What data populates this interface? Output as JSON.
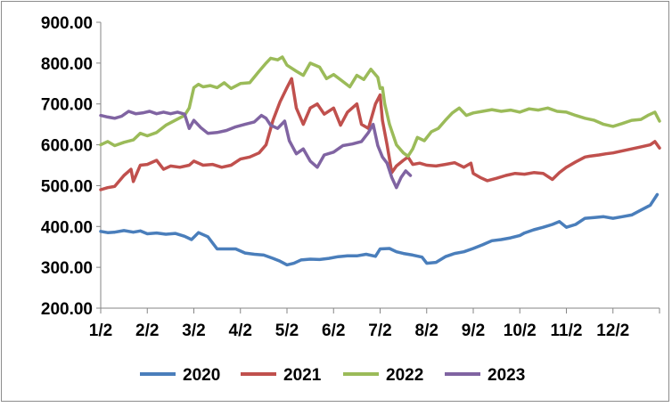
{
  "chart_data": {
    "type": "line",
    "title": "",
    "xlabel": "",
    "ylabel": "",
    "ylim": [
      200,
      900
    ],
    "y_ticks": [
      "200.00",
      "300.00",
      "400.00",
      "500.00",
      "600.00",
      "700.00",
      "800.00",
      "900.00"
    ],
    "x_ticks": [
      "1/2",
      "2/2",
      "3/2",
      "4/2",
      "5/2",
      "6/2",
      "7/2",
      "8/2",
      "9/2",
      "10/2",
      "11/2",
      "12/2"
    ],
    "grid": false,
    "legend_position": "bottom",
    "x_unit": "month (1 = Jan 2 ... 13 = year end)",
    "series": [
      {
        "name": "2020",
        "color": "#4a7ebb",
        "points": [
          [
            1.0,
            388
          ],
          [
            1.15,
            385
          ],
          [
            1.3,
            386
          ],
          [
            1.5,
            390
          ],
          [
            1.7,
            386
          ],
          [
            1.85,
            389
          ],
          [
            2.0,
            382
          ],
          [
            2.2,
            384
          ],
          [
            2.4,
            381
          ],
          [
            2.6,
            383
          ],
          [
            2.8,
            376
          ],
          [
            2.95,
            368
          ],
          [
            3.1,
            385
          ],
          [
            3.3,
            375
          ],
          [
            3.5,
            345
          ],
          [
            3.7,
            345
          ],
          [
            3.9,
            345
          ],
          [
            4.1,
            335
          ],
          [
            4.3,
            332
          ],
          [
            4.5,
            330
          ],
          [
            4.7,
            322
          ],
          [
            4.85,
            315
          ],
          [
            5.0,
            306
          ],
          [
            5.15,
            310
          ],
          [
            5.3,
            318
          ],
          [
            5.5,
            320
          ],
          [
            5.7,
            319
          ],
          [
            5.9,
            322
          ],
          [
            6.1,
            326
          ],
          [
            6.3,
            328
          ],
          [
            6.5,
            328
          ],
          [
            6.7,
            332
          ],
          [
            6.9,
            327
          ],
          [
            7.0,
            345
          ],
          [
            7.2,
            346
          ],
          [
            7.35,
            338
          ],
          [
            7.5,
            334
          ],
          [
            7.7,
            330
          ],
          [
            7.9,
            325
          ],
          [
            8.0,
            310
          ],
          [
            8.2,
            312
          ],
          [
            8.4,
            326
          ],
          [
            8.6,
            334
          ],
          [
            8.8,
            338
          ],
          [
            9.0,
            346
          ],
          [
            9.2,
            355
          ],
          [
            9.4,
            365
          ],
          [
            9.6,
            368
          ],
          [
            9.8,
            372
          ],
          [
            10.0,
            378
          ],
          [
            10.1,
            384
          ],
          [
            10.3,
            392
          ],
          [
            10.5,
            398
          ],
          [
            10.7,
            405
          ],
          [
            10.85,
            412
          ],
          [
            11.0,
            398
          ],
          [
            11.2,
            405
          ],
          [
            11.4,
            420
          ],
          [
            11.6,
            422
          ],
          [
            11.8,
            424
          ],
          [
            12.0,
            420
          ],
          [
            12.2,
            424
          ],
          [
            12.4,
            428
          ],
          [
            12.6,
            440
          ],
          [
            12.8,
            452
          ],
          [
            12.95,
            478
          ]
        ]
      },
      {
        "name": "2021",
        "color": "#c0504d",
        "points": [
          [
            1.0,
            490
          ],
          [
            1.15,
            495
          ],
          [
            1.3,
            498
          ],
          [
            1.5,
            525
          ],
          [
            1.65,
            540
          ],
          [
            1.7,
            510
          ],
          [
            1.85,
            550
          ],
          [
            2.0,
            552
          ],
          [
            2.2,
            562
          ],
          [
            2.35,
            540
          ],
          [
            2.5,
            548
          ],
          [
            2.7,
            545
          ],
          [
            2.9,
            550
          ],
          [
            3.0,
            560
          ],
          [
            3.2,
            550
          ],
          [
            3.4,
            552
          ],
          [
            3.6,
            545
          ],
          [
            3.8,
            550
          ],
          [
            4.0,
            565
          ],
          [
            4.2,
            570
          ],
          [
            4.4,
            580
          ],
          [
            4.55,
            600
          ],
          [
            4.7,
            660
          ],
          [
            4.85,
            705
          ],
          [
            5.0,
            740
          ],
          [
            5.1,
            762
          ],
          [
            5.2,
            690
          ],
          [
            5.35,
            650
          ],
          [
            5.5,
            690
          ],
          [
            5.65,
            700
          ],
          [
            5.8,
            675
          ],
          [
            6.0,
            690
          ],
          [
            6.15,
            648
          ],
          [
            6.3,
            680
          ],
          [
            6.5,
            700
          ],
          [
            6.6,
            650
          ],
          [
            6.75,
            640
          ],
          [
            6.9,
            700
          ],
          [
            7.0,
            722
          ],
          [
            7.05,
            660
          ],
          [
            7.15,
            600
          ],
          [
            7.25,
            532
          ],
          [
            7.35,
            548
          ],
          [
            7.5,
            562
          ],
          [
            7.6,
            570
          ],
          [
            7.7,
            552
          ],
          [
            7.85,
            555
          ],
          [
            8.0,
            550
          ],
          [
            8.2,
            548
          ],
          [
            8.4,
            552
          ],
          [
            8.6,
            556
          ],
          [
            8.8,
            545
          ],
          [
            8.95,
            555
          ],
          [
            9.0,
            530
          ],
          [
            9.15,
            520
          ],
          [
            9.3,
            512
          ],
          [
            9.5,
            518
          ],
          [
            9.7,
            525
          ],
          [
            9.9,
            530
          ],
          [
            10.1,
            528
          ],
          [
            10.3,
            532
          ],
          [
            10.5,
            530
          ],
          [
            10.7,
            515
          ],
          [
            10.85,
            532
          ],
          [
            11.0,
            545
          ],
          [
            11.2,
            558
          ],
          [
            11.4,
            570
          ],
          [
            11.5,
            572
          ],
          [
            11.7,
            575
          ],
          [
            11.85,
            578
          ],
          [
            12.0,
            580
          ],
          [
            12.2,
            585
          ],
          [
            12.4,
            590
          ],
          [
            12.6,
            595
          ],
          [
            12.8,
            600
          ],
          [
            12.9,
            608
          ],
          [
            13.0,
            592
          ]
        ]
      },
      {
        "name": "2022",
        "color": "#9bbb59",
        "points": [
          [
            1.0,
            600
          ],
          [
            1.15,
            608
          ],
          [
            1.3,
            598
          ],
          [
            1.5,
            606
          ],
          [
            1.7,
            612
          ],
          [
            1.85,
            628
          ],
          [
            2.0,
            622
          ],
          [
            2.2,
            630
          ],
          [
            2.4,
            648
          ],
          [
            2.6,
            660
          ],
          [
            2.8,
            672
          ],
          [
            2.9,
            690
          ],
          [
            3.0,
            740
          ],
          [
            3.1,
            748
          ],
          [
            3.2,
            742
          ],
          [
            3.35,
            745
          ],
          [
            3.5,
            740
          ],
          [
            3.65,
            752
          ],
          [
            3.8,
            738
          ],
          [
            4.0,
            750
          ],
          [
            4.2,
            752
          ],
          [
            4.4,
            780
          ],
          [
            4.55,
            800
          ],
          [
            4.65,
            812
          ],
          [
            4.8,
            808
          ],
          [
            4.9,
            815
          ],
          [
            5.0,
            795
          ],
          [
            5.2,
            780
          ],
          [
            5.35,
            770
          ],
          [
            5.5,
            800
          ],
          [
            5.7,
            790
          ],
          [
            5.85,
            762
          ],
          [
            6.0,
            772
          ],
          [
            6.2,
            755
          ],
          [
            6.35,
            742
          ],
          [
            6.5,
            770
          ],
          [
            6.65,
            760
          ],
          [
            6.8,
            785
          ],
          [
            6.95,
            765
          ],
          [
            7.0,
            738
          ],
          [
            7.05,
            740
          ],
          [
            7.1,
            700
          ],
          [
            7.2,
            650
          ],
          [
            7.35,
            600
          ],
          [
            7.5,
            580
          ],
          [
            7.6,
            572
          ],
          [
            7.7,
            590
          ],
          [
            7.8,
            618
          ],
          [
            7.95,
            610
          ],
          [
            8.1,
            632
          ],
          [
            8.25,
            640
          ],
          [
            8.4,
            660
          ],
          [
            8.55,
            678
          ],
          [
            8.7,
            690
          ],
          [
            8.85,
            672
          ],
          [
            9.0,
            678
          ],
          [
            9.2,
            682
          ],
          [
            9.4,
            686
          ],
          [
            9.6,
            682
          ],
          [
            9.8,
            685
          ],
          [
            10.0,
            680
          ],
          [
            10.2,
            688
          ],
          [
            10.4,
            685
          ],
          [
            10.6,
            690
          ],
          [
            10.8,
            682
          ],
          [
            11.0,
            680
          ],
          [
            11.2,
            672
          ],
          [
            11.4,
            665
          ],
          [
            11.6,
            660
          ],
          [
            11.8,
            650
          ],
          [
            12.0,
            645
          ],
          [
            12.2,
            652
          ],
          [
            12.4,
            660
          ],
          [
            12.6,
            662
          ],
          [
            12.75,
            672
          ],
          [
            12.9,
            680
          ],
          [
            13.0,
            658
          ]
        ]
      },
      {
        "name": "2023",
        "color": "#8064a2",
        "points": [
          [
            1.0,
            672
          ],
          [
            1.15,
            668
          ],
          [
            1.3,
            665
          ],
          [
            1.45,
            670
          ],
          [
            1.6,
            682
          ],
          [
            1.75,
            676
          ],
          [
            1.9,
            678
          ],
          [
            2.05,
            682
          ],
          [
            2.2,
            676
          ],
          [
            2.35,
            680
          ],
          [
            2.5,
            676
          ],
          [
            2.65,
            680
          ],
          [
            2.8,
            675
          ],
          [
            2.9,
            640
          ],
          [
            3.0,
            660
          ],
          [
            3.15,
            642
          ],
          [
            3.3,
            628
          ],
          [
            3.5,
            630
          ],
          [
            3.7,
            635
          ],
          [
            3.9,
            644
          ],
          [
            4.1,
            650
          ],
          [
            4.3,
            656
          ],
          [
            4.45,
            672
          ],
          [
            4.55,
            665
          ],
          [
            4.65,
            648
          ],
          [
            4.8,
            640
          ],
          [
            4.95,
            658
          ],
          [
            5.05,
            610
          ],
          [
            5.2,
            578
          ],
          [
            5.35,
            590
          ],
          [
            5.5,
            560
          ],
          [
            5.65,
            545
          ],
          [
            5.8,
            575
          ],
          [
            6.0,
            582
          ],
          [
            6.2,
            598
          ],
          [
            6.4,
            602
          ],
          [
            6.6,
            608
          ],
          [
            6.75,
            630
          ],
          [
            6.85,
            650
          ],
          [
            6.95,
            598
          ],
          [
            7.05,
            570
          ],
          [
            7.15,
            555
          ],
          [
            7.25,
            520
          ],
          [
            7.35,
            495
          ],
          [
            7.45,
            520
          ],
          [
            7.55,
            536
          ],
          [
            7.65,
            525
          ]
        ]
      }
    ]
  }
}
